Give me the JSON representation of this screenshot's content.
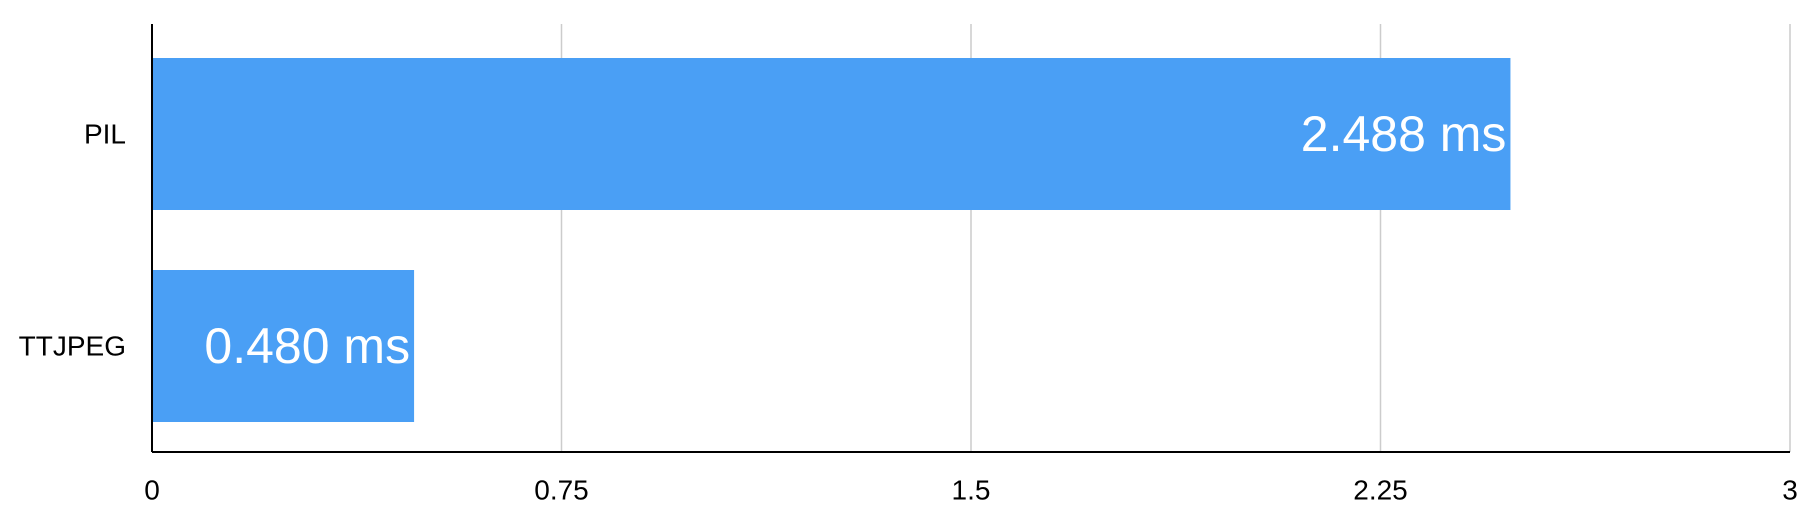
{
  "chart_data": {
    "type": "bar",
    "orientation": "horizontal",
    "categories": [
      "PIL",
      "TTJPEG"
    ],
    "values": [
      2.488,
      0.48
    ],
    "data_labels": [
      "2.488 ms",
      "0.480 ms"
    ],
    "xlim": [
      0,
      3
    ],
    "x_ticks": [
      0,
      0.75,
      1.5,
      2.25,
      3
    ],
    "x_tick_labels": [
      "0",
      "0.75",
      "1.5",
      "2.25",
      "3"
    ],
    "title": "",
    "xlabel": "",
    "ylabel": "",
    "grid": true,
    "legend": "none",
    "bar_color": "#4A9FF5",
    "gridline_color": "#CCCCCC",
    "axis_color": "#000000"
  }
}
